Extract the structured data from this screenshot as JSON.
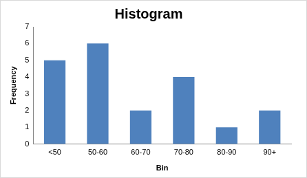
{
  "chart_data": {
    "type": "bar",
    "title": "Histogram",
    "xlabel": "Bin",
    "ylabel": "Frequency",
    "categories": [
      "<50",
      "50-60",
      "60-70",
      "70-80",
      "80-90",
      "90+"
    ],
    "values": [
      5,
      6,
      2,
      4,
      1,
      2
    ],
    "color": "#4f81bd",
    "ylim": [
      0,
      7
    ],
    "yticks": [
      0,
      1,
      2,
      3,
      4,
      5,
      6,
      7
    ],
    "grid": false
  }
}
